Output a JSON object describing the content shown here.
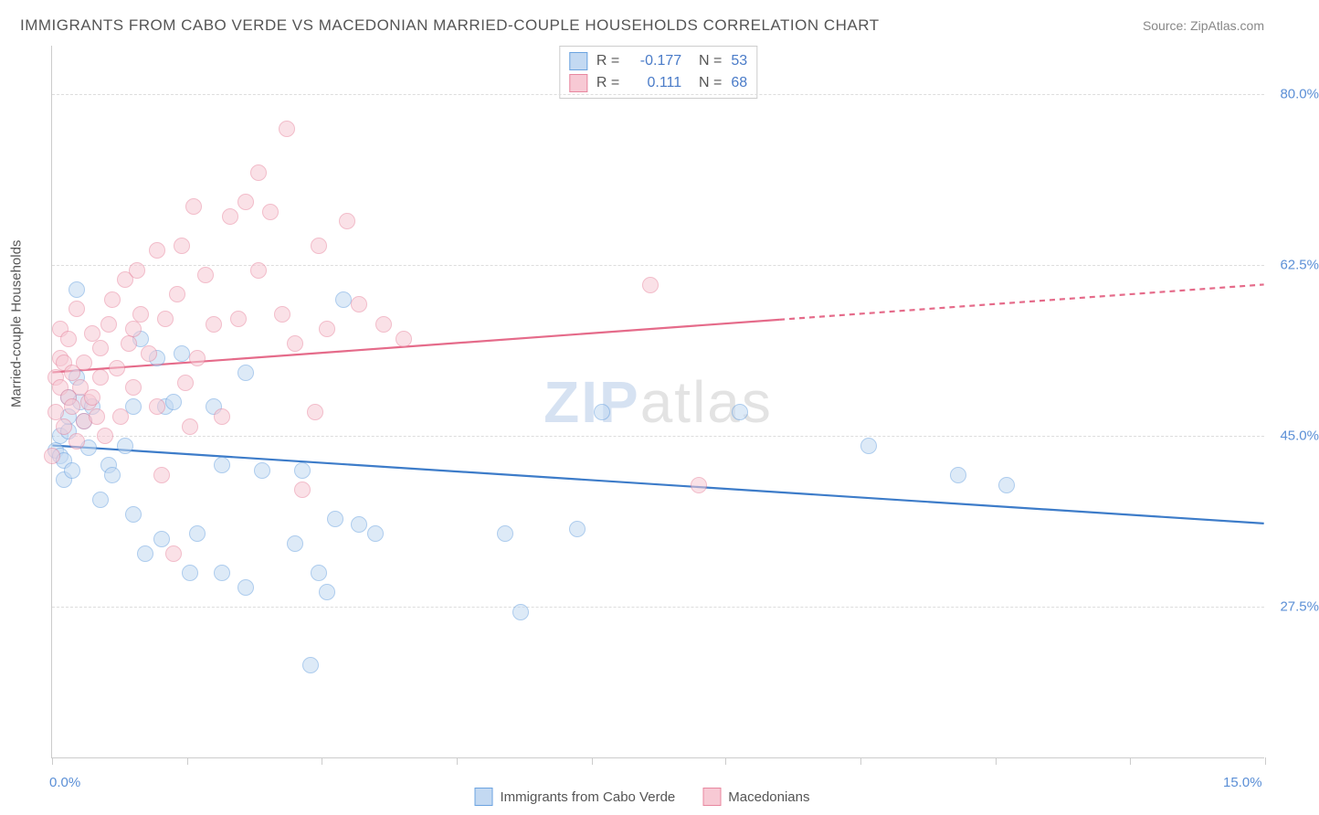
{
  "title": "IMMIGRANTS FROM CABO VERDE VS MACEDONIAN MARRIED-COUPLE HOUSEHOLDS CORRELATION CHART",
  "source": "Source: ZipAtlas.com",
  "yaxis_title": "Married-couple Households",
  "watermark_bold": "ZIP",
  "watermark_light": "atlas",
  "chart": {
    "type": "scatter",
    "background_color": "#ffffff",
    "grid_color": "#dddddd",
    "axis_color": "#cccccc",
    "tick_label_color": "#5b8fd6",
    "text_color": "#555555",
    "xlim": [
      0.0,
      15.0
    ],
    "ylim": [
      12.0,
      85.0
    ],
    "xtick_positions": [
      0.0,
      1.67,
      3.33,
      5.0,
      6.67,
      8.33,
      10.0,
      11.67,
      13.33,
      15.0
    ],
    "xaxis_label_left": "0.0%",
    "xaxis_label_right": "15.0%",
    "ytick_labels": [
      {
        "value": 27.5,
        "label": "27.5%"
      },
      {
        "value": 45.0,
        "label": "45.0%"
      },
      {
        "value": 62.5,
        "label": "62.5%"
      },
      {
        "value": 80.0,
        "label": "80.0%"
      }
    ],
    "point_radius": 9,
    "point_stroke_width": 1.2,
    "series": [
      {
        "name": "Immigrants from Cabo Verde",
        "fill_color": "#c3d9f2",
        "stroke_color": "#6ba3e0",
        "fill_opacity": 0.55,
        "R": "-0.177",
        "N": "53",
        "trend": {
          "y_at_xmin": 44.0,
          "y_at_xmax": 36.0,
          "solid_end_x": 15.0,
          "color": "#3d7cc9",
          "width": 2.2
        },
        "points": [
          [
            0.05,
            43.5
          ],
          [
            0.1,
            43.0
          ],
          [
            0.1,
            45.0
          ],
          [
            0.15,
            42.5
          ],
          [
            0.15,
            40.5
          ],
          [
            0.2,
            45.5
          ],
          [
            0.2,
            47.0
          ],
          [
            0.2,
            49.0
          ],
          [
            0.25,
            41.5
          ],
          [
            0.3,
            60.0
          ],
          [
            0.3,
            51.0
          ],
          [
            0.35,
            48.5
          ],
          [
            0.4,
            46.5
          ],
          [
            0.45,
            43.8
          ],
          [
            0.5,
            48.0
          ],
          [
            0.6,
            38.5
          ],
          [
            0.7,
            42.0
          ],
          [
            0.75,
            41.0
          ],
          [
            0.9,
            44.0
          ],
          [
            1.0,
            48.0
          ],
          [
            1.0,
            37.0
          ],
          [
            1.1,
            55.0
          ],
          [
            1.15,
            33.0
          ],
          [
            1.3,
            53.0
          ],
          [
            1.35,
            34.5
          ],
          [
            1.4,
            48.0
          ],
          [
            1.5,
            48.5
          ],
          [
            1.6,
            53.5
          ],
          [
            1.7,
            31.0
          ],
          [
            1.8,
            35.0
          ],
          [
            2.0,
            48.0
          ],
          [
            2.1,
            31.0
          ],
          [
            2.1,
            42.0
          ],
          [
            2.4,
            51.5
          ],
          [
            2.4,
            29.5
          ],
          [
            2.6,
            41.5
          ],
          [
            3.0,
            34.0
          ],
          [
            3.1,
            41.5
          ],
          [
            3.2,
            21.5
          ],
          [
            3.3,
            31.0
          ],
          [
            3.4,
            29.0
          ],
          [
            3.5,
            36.5
          ],
          [
            3.6,
            59.0
          ],
          [
            3.8,
            36.0
          ],
          [
            4.0,
            35.0
          ],
          [
            5.6,
            35.0
          ],
          [
            5.8,
            27.0
          ],
          [
            6.5,
            35.5
          ],
          [
            6.8,
            47.5
          ],
          [
            8.5,
            47.5
          ],
          [
            10.1,
            44.0
          ],
          [
            11.2,
            41.0
          ],
          [
            11.8,
            40.0
          ]
        ]
      },
      {
        "name": "Macedonians",
        "fill_color": "#f7c9d4",
        "stroke_color": "#e8879f",
        "fill_opacity": 0.55,
        "R": "0.111",
        "N": "68",
        "trend": {
          "y_at_xmin": 51.5,
          "y_at_xmax": 60.5,
          "solid_end_x": 9.0,
          "color": "#e56b8a",
          "width": 2.2
        },
        "points": [
          [
            0.0,
            43.0
          ],
          [
            0.05,
            51.0
          ],
          [
            0.05,
            47.5
          ],
          [
            0.1,
            53.0
          ],
          [
            0.1,
            50.0
          ],
          [
            0.1,
            56.0
          ],
          [
            0.15,
            52.5
          ],
          [
            0.15,
            46.0
          ],
          [
            0.2,
            49.0
          ],
          [
            0.2,
            55.0
          ],
          [
            0.25,
            51.5
          ],
          [
            0.25,
            48.0
          ],
          [
            0.3,
            44.5
          ],
          [
            0.3,
            58.0
          ],
          [
            0.35,
            50.0
          ],
          [
            0.4,
            52.5
          ],
          [
            0.4,
            46.5
          ],
          [
            0.45,
            48.5
          ],
          [
            0.5,
            55.5
          ],
          [
            0.5,
            49.0
          ],
          [
            0.55,
            47.0
          ],
          [
            0.6,
            54.0
          ],
          [
            0.6,
            51.0
          ],
          [
            0.65,
            45.0
          ],
          [
            0.7,
            56.5
          ],
          [
            0.75,
            59.0
          ],
          [
            0.8,
            52.0
          ],
          [
            0.85,
            47.0
          ],
          [
            0.9,
            61.0
          ],
          [
            0.95,
            54.5
          ],
          [
            1.0,
            56.0
          ],
          [
            1.0,
            50.0
          ],
          [
            1.05,
            62.0
          ],
          [
            1.1,
            57.5
          ],
          [
            1.2,
            53.5
          ],
          [
            1.3,
            48.0
          ],
          [
            1.3,
            64.0
          ],
          [
            1.35,
            41.0
          ],
          [
            1.4,
            57.0
          ],
          [
            1.5,
            33.0
          ],
          [
            1.55,
            59.5
          ],
          [
            1.6,
            64.5
          ],
          [
            1.65,
            50.5
          ],
          [
            1.7,
            46.0
          ],
          [
            1.75,
            68.5
          ],
          [
            1.8,
            53.0
          ],
          [
            1.9,
            61.5
          ],
          [
            2.0,
            56.5
          ],
          [
            2.1,
            47.0
          ],
          [
            2.2,
            67.5
          ],
          [
            2.3,
            57.0
          ],
          [
            2.4,
            69.0
          ],
          [
            2.55,
            62.0
          ],
          [
            2.55,
            72.0
          ],
          [
            2.7,
            68.0
          ],
          [
            2.85,
            57.5
          ],
          [
            2.9,
            76.5
          ],
          [
            3.0,
            54.5
          ],
          [
            3.1,
            39.5
          ],
          [
            3.25,
            47.5
          ],
          [
            3.3,
            64.5
          ],
          [
            3.4,
            56.0
          ],
          [
            3.65,
            67.0
          ],
          [
            3.8,
            58.5
          ],
          [
            4.1,
            56.5
          ],
          [
            4.35,
            55.0
          ],
          [
            7.4,
            60.5
          ],
          [
            8.0,
            40.0
          ]
        ]
      }
    ]
  },
  "legend": {
    "items": [
      {
        "label": "Immigrants from Cabo Verde",
        "fill": "#c3d9f2",
        "stroke": "#6ba3e0"
      },
      {
        "label": "Macedonians",
        "fill": "#f7c9d4",
        "stroke": "#e8879f"
      }
    ]
  }
}
